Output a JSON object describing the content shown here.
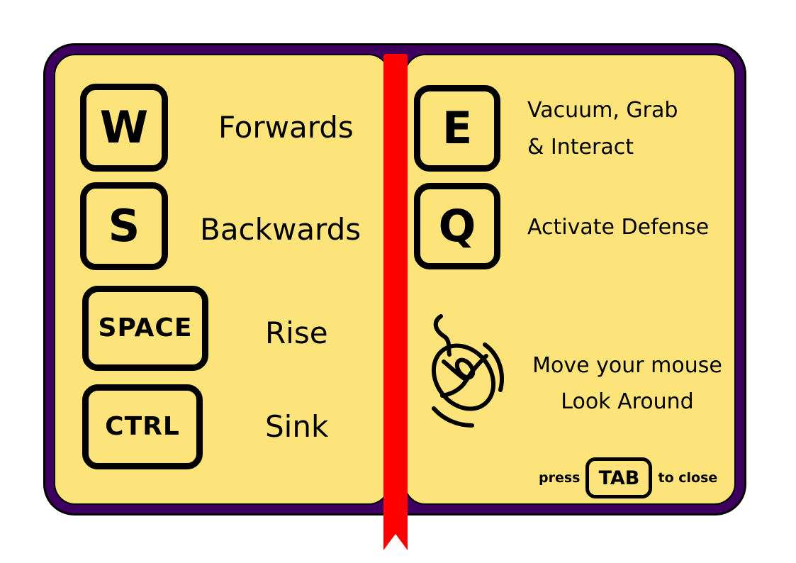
{
  "colors": {
    "book_cover": "#3d005f",
    "page": "#fde47a",
    "ribbon": "#ff0000",
    "ink": "#000000"
  },
  "left_page": {
    "controls": [
      {
        "key": "W",
        "action": "Forwards"
      },
      {
        "key": "S",
        "action": "Backwards"
      },
      {
        "key": "SPACE",
        "action": "Rise"
      },
      {
        "key": "CTRL",
        "action": "Sink"
      }
    ]
  },
  "right_page": {
    "controls": [
      {
        "key": "E",
        "action_line1": "Vacuum, Grab",
        "action_line2": "& Interact"
      },
      {
        "key": "Q",
        "action": "Activate Defense"
      }
    ],
    "mouse": {
      "icon": "mouse-icon",
      "line1": "Move your mouse",
      "line2": "Look Around"
    },
    "close_hint": {
      "prefix": "press",
      "key": "TAB",
      "suffix": "to close"
    }
  }
}
